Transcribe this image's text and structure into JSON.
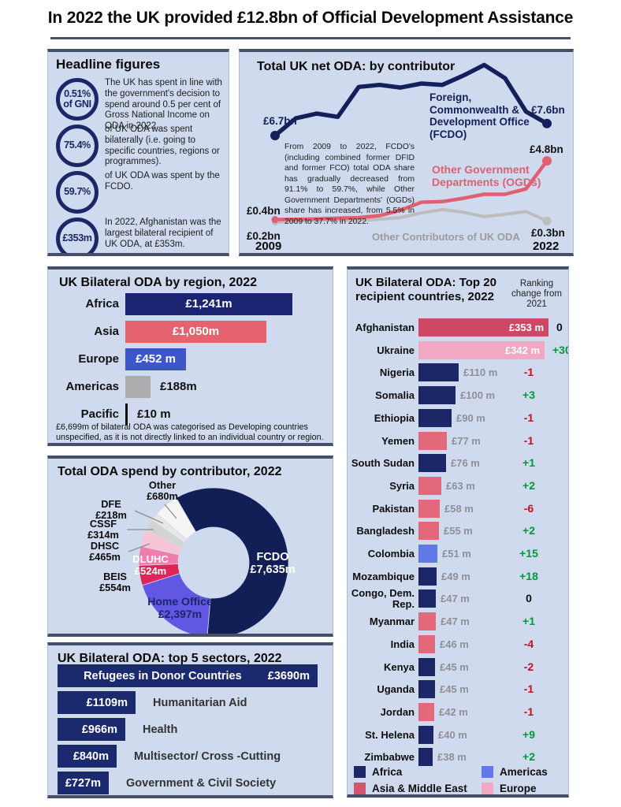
{
  "header": {
    "title": "In 2022 the UK provided £12.8bn of Official Development Assistance"
  },
  "colors": {
    "panel_bg": "#cfdaee",
    "panel_border": "#44506b",
    "navy": "#1b2766",
    "rank_positive": "#00983f",
    "rank_negative": "#c21220",
    "rank_zero": "#111111",
    "value_text_gray": "#8f8f98"
  },
  "headline": {
    "title": "Headline figures",
    "items": [
      {
        "stat_lines": [
          "0.51%",
          "of GNI"
        ],
        "text": "The UK has spent in line with the government's decision to spend around 0.5 per cent of Gross National Income on ODA in 2022."
      },
      {
        "stat_lines": [
          "75.4%"
        ],
        "text": "of UK ODA was spent bilaterally (i.e. going to specific countries, regions or programmes)."
      },
      {
        "stat_lines": [
          "59.7%"
        ],
        "text": "of UK ODA was spent by the FCDO."
      },
      {
        "stat_lines": [
          "£353m"
        ],
        "text": "In 2022, Afghanistan was the largest bilateral recipient of UK ODA, at £353m."
      }
    ]
  },
  "chart_data": [
    {
      "id": "total-net-oda",
      "type": "line",
      "title": "Total UK net ODA: by contributor",
      "unit": "£bn",
      "x_years": [
        2009,
        2010,
        2011,
        2012,
        2013,
        2014,
        2015,
        2016,
        2017,
        2018,
        2019,
        2020,
        2021,
        2022
      ],
      "x_axis_labels": [
        "2009",
        "2022"
      ],
      "annotation": "From 2009 to 2022, FCDO's (including combined former DFID and former FCO) total ODA share has gradually decreased from 91.1% to 59.7%, while Other Government Departments' (OGDs) share has increased, from 5.5% in 2009 to 37.7% in 2022.",
      "series": [
        {
          "name": "Foreign, Commonwealth & Development Office (FCDO)",
          "color": "#15205a",
          "start_label": "£6.7bn",
          "end_label": "£7.6bn",
          "values": [
            6.7,
            8.0,
            8.35,
            8.1,
            10.35,
            10.5,
            10.3,
            10.6,
            10.5,
            11.2,
            12.0,
            11.0,
            8.5,
            7.6
          ]
        },
        {
          "name": "Other Government Departments (OGDs)",
          "color": "#e05f72",
          "start_label": "£0.4bn",
          "end_label": "£4.8bn",
          "values": [
            0.4,
            0.42,
            0.45,
            0.5,
            0.55,
            0.7,
            1.1,
            1.7,
            1.75,
            2.0,
            2.3,
            2.3,
            2.7,
            4.8
          ]
        },
        {
          "name": "Other Contributors of UK ODA",
          "color": "#bdbdbd",
          "start_label": "£0.2bn",
          "end_label": "£0.3bn",
          "values": [
            0.2,
            0.28,
            0.33,
            0.38,
            0.33,
            0.42,
            0.55,
            0.9,
            1.15,
            0.95,
            0.62,
            0.8,
            1.0,
            0.3
          ]
        }
      ]
    },
    {
      "id": "bilateral-by-region",
      "type": "bar",
      "title": "UK Bilateral ODA by region, 2022",
      "categories": [
        "Africa",
        "Asia",
        "Europe",
        "Americas",
        "Pacific"
      ],
      "values": [
        1241,
        1050,
        452,
        188,
        10
      ],
      "value_labels": [
        "£1,241m",
        "£1,050m",
        "£452 m",
        "£188m",
        "£10 m"
      ],
      "bar_colors": [
        "#1a2470",
        "#e5636f",
        "#3d56c9",
        "#adadad",
        "#111111"
      ],
      "label_inside": [
        true,
        true,
        true,
        false,
        false
      ],
      "footnote": "£6,699m of bilateral ODA was categorised as Developing countries unspecified, as it is not directly linked to an individual country or region."
    },
    {
      "id": "top20-recipients",
      "type": "bar",
      "title": "UK Bilateral ODA: Top 20 recipient countries, 2022",
      "ranking_header": "Ranking change from 2021",
      "region_colors": {
        "africa": "#1b2766",
        "asia": "#e3687a",
        "asia_highlight": "#ce4866",
        "americas": "#6079e6",
        "europe": "#f2a8c5"
      },
      "trend_colors": {
        "positive": "#00983f",
        "negative": "#c21220",
        "zero": "#111111"
      },
      "rows": [
        {
          "country": "Afghanistan",
          "value": 353,
          "value_label": "£353 m",
          "change": "0",
          "trend": "zero",
          "region": "asia_highlight",
          "label_inside": true
        },
        {
          "country": "Ukraine",
          "value": 342,
          "value_label": "£342 m",
          "change": "+30",
          "trend": "positive",
          "region": "europe",
          "label_inside": true
        },
        {
          "country": "Nigeria",
          "value": 110,
          "value_label": "£110 m",
          "change": "-1",
          "trend": "negative",
          "region": "africa"
        },
        {
          "country": "Somalia",
          "value": 100,
          "value_label": "£100 m",
          "change": "+3",
          "trend": "positive",
          "region": "africa"
        },
        {
          "country": "Ethiopia",
          "value": 90,
          "value_label": "£90 m",
          "change": "-1",
          "trend": "negative",
          "region": "africa"
        },
        {
          "country": "Yemen",
          "value": 77,
          "value_label": "£77 m",
          "change": "-1",
          "trend": "negative",
          "region": "asia"
        },
        {
          "country": "South Sudan",
          "value": 76,
          "value_label": "£76 m",
          "change": "+1",
          "trend": "positive",
          "region": "africa"
        },
        {
          "country": "Syria",
          "value": 63,
          "value_label": "£63 m",
          "change": "+2",
          "trend": "positive",
          "region": "asia"
        },
        {
          "country": "Pakistan",
          "value": 58,
          "value_label": "£58 m",
          "change": "-6",
          "trend": "negative",
          "region": "asia"
        },
        {
          "country": "Bangladesh",
          "value": 55,
          "value_label": "£55 m",
          "change": "+2",
          "trend": "positive",
          "region": "asia"
        },
        {
          "country": "Colombia",
          "value": 51,
          "value_label": "£51 m",
          "change": "+15",
          "trend": "positive",
          "region": "americas"
        },
        {
          "country": "Mozambique",
          "value": 49,
          "value_label": "£49 m",
          "change": "+18",
          "trend": "positive",
          "region": "africa"
        },
        {
          "country": "Congo, Dem. Rep.",
          "value": 47,
          "value_label": "£47 m",
          "change": "0",
          "trend": "zero",
          "region": "africa"
        },
        {
          "country": "Myanmar",
          "value": 47,
          "value_label": "£47 m",
          "change": "+1",
          "trend": "positive",
          "region": "asia"
        },
        {
          "country": "India",
          "value": 46,
          "value_label": "£46 m",
          "change": "-4",
          "trend": "negative",
          "region": "asia"
        },
        {
          "country": "Kenya",
          "value": 45,
          "value_label": "£45 m",
          "change": "-2",
          "trend": "negative",
          "region": "africa"
        },
        {
          "country": "Uganda",
          "value": 45,
          "value_label": "£45 m",
          "change": "-1",
          "trend": "negative",
          "region": "africa"
        },
        {
          "country": "Jordan",
          "value": 42,
          "value_label": "£42 m",
          "change": "-1",
          "trend": "negative",
          "region": "asia"
        },
        {
          "country": "St. Helena",
          "value": 40,
          "value_label": "£40 m",
          "change": "+9",
          "trend": "positive",
          "region": "africa"
        },
        {
          "country": "Zimbabwe",
          "value": 38,
          "value_label": "£38 m",
          "change": "+2",
          "trend": "positive",
          "region": "africa"
        }
      ],
      "legend": [
        {
          "label": "Africa",
          "color": "#1b2766"
        },
        {
          "label": "Asia & Middle East",
          "color": "#d5536d"
        },
        {
          "label": "Americas",
          "color": "#6079e6"
        },
        {
          "label": "Europe",
          "color": "#f2a8c5"
        }
      ]
    },
    {
      "id": "spend-by-contributor",
      "type": "pie",
      "title": "Total ODA spend by contributor, 2022",
      "slices": [
        {
          "name": "FCDO",
          "value": 7635,
          "label": "£7,635m",
          "color": "#121f56"
        },
        {
          "name": "Home Office",
          "value": 2397,
          "label": "£2,397m",
          "color": "#6257e2"
        },
        {
          "name": "BEIS",
          "value": 554,
          "label": "£554m",
          "color": "#e02458"
        },
        {
          "name": "DLUHC",
          "value": 524,
          "label": "£524m",
          "color": "#f07cae"
        },
        {
          "name": "DHSC",
          "value": 465,
          "label": "£465m",
          "color": "#f7c3d6"
        },
        {
          "name": "CSSF",
          "value": 314,
          "label": "£314m",
          "color": "#d3d3d1"
        },
        {
          "name": "DFE",
          "value": 218,
          "label": "£218m",
          "color": "#e7e7e5"
        },
        {
          "name": "Other",
          "value": 680,
          "label": "£680m",
          "color": "#f5f5f3"
        }
      ]
    },
    {
      "id": "top5-sectors",
      "type": "bar",
      "title": "UK Bilateral ODA: top 5 sectors, 2022",
      "rows": [
        {
          "sector": "Refugees in Donor Countries",
          "value": 3690,
          "value_label": "£3690m",
          "name_inside": true
        },
        {
          "sector": "Humanitarian Aid",
          "value": 1109,
          "value_label": "£1109m"
        },
        {
          "sector": "Health",
          "value": 966,
          "value_label": "£966m"
        },
        {
          "sector": "Multisector/ Cross -Cutting",
          "value": 840,
          "value_label": "£840m"
        },
        {
          "sector": "Government & Civil Society",
          "value": 727,
          "value_label": "£727m"
        }
      ]
    }
  ]
}
